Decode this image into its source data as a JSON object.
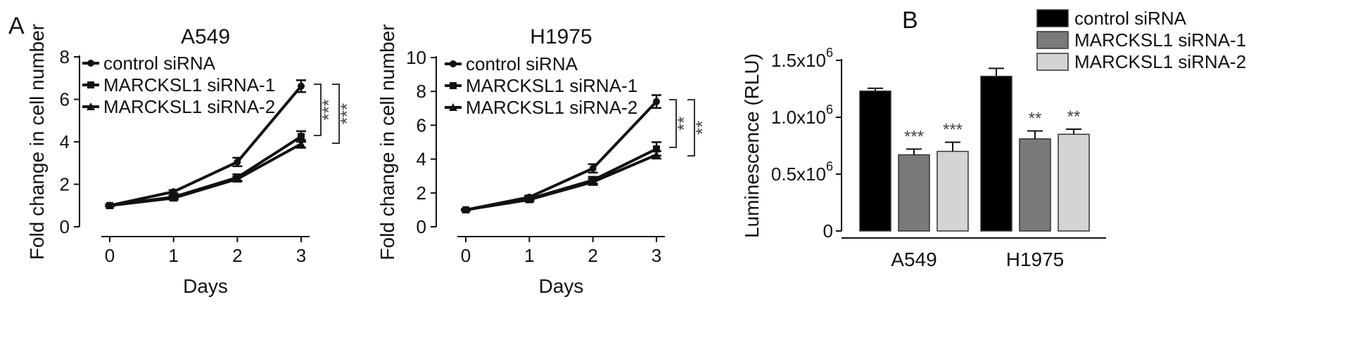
{
  "panel_labels": {
    "a": "A",
    "b": "B"
  },
  "chart_data": [
    {
      "type": "line",
      "title": "A549",
      "xlabel": "Days",
      "ylabel": "Fold change in cell number",
      "x": [
        0,
        1,
        2,
        3
      ],
      "xlim": [
        0,
        3
      ],
      "ylim": [
        0,
        8
      ],
      "yticks": [
        0,
        2,
        4,
        6,
        8
      ],
      "grid": false,
      "legend_position": "top-left",
      "series": [
        {
          "name": "control siRNA",
          "marker": "circle",
          "values": [
            1.0,
            1.65,
            3.05,
            6.62
          ],
          "errors": [
            0.05,
            0.08,
            0.2,
            0.28
          ]
        },
        {
          "name": "MARCKSL1 siRNA-1",
          "marker": "square",
          "values": [
            1.0,
            1.4,
            2.32,
            4.25
          ],
          "errors": [
            0.05,
            0.08,
            0.15,
            0.25
          ]
        },
        {
          "name": "MARCKSL1 siRNA-2",
          "marker": "triangle",
          "values": [
            1.0,
            1.35,
            2.25,
            3.9
          ],
          "errors": [
            0.05,
            0.08,
            0.12,
            0.18
          ]
        }
      ],
      "significance": [
        "***",
        "***"
      ]
    },
    {
      "type": "line",
      "title": "H1975",
      "xlabel": "Days",
      "ylabel": "Fold change in cell number",
      "x": [
        0,
        1,
        2,
        3
      ],
      "xlim": [
        0,
        3
      ],
      "ylim": [
        0,
        10
      ],
      "yticks": [
        0,
        2,
        4,
        6,
        8,
        10
      ],
      "grid": false,
      "legend_position": "top-left",
      "series": [
        {
          "name": "control siRNA",
          "marker": "circle",
          "values": [
            1.0,
            1.75,
            3.45,
            7.4
          ],
          "errors": [
            0.05,
            0.1,
            0.25,
            0.38
          ]
        },
        {
          "name": "MARCKSL1 siRNA-1",
          "marker": "square",
          "values": [
            1.0,
            1.65,
            2.75,
            4.6
          ],
          "errors": [
            0.05,
            0.1,
            0.2,
            0.4
          ]
        },
        {
          "name": "MARCKSL1 siRNA-2",
          "marker": "triangle",
          "values": [
            1.0,
            1.6,
            2.65,
            4.25
          ],
          "errors": [
            0.05,
            0.1,
            0.18,
            0.22
          ]
        }
      ],
      "significance": [
        "**",
        "**"
      ]
    },
    {
      "type": "bar",
      "categories": [
        "A549",
        "H1975"
      ],
      "ylabel": "Luminescence (RLU)",
      "ylim": [
        0,
        1500000
      ],
      "yticks": [
        0,
        500000,
        1000000,
        1500000
      ],
      "ytick_labels": [
        {
          "base": "0",
          "exp": ""
        },
        {
          "base": "0.5x10",
          "exp": "6"
        },
        {
          "base": "1.0x10",
          "exp": "6"
        },
        {
          "base": "1.5x10",
          "exp": "6"
        }
      ],
      "grid": false,
      "legend_position": "top-left",
      "series": [
        {
          "name": "control siRNA",
          "color": "#000000",
          "values": [
            1230000,
            1360000
          ],
          "errors": [
            25000,
            70000
          ],
          "stars": [
            "",
            ""
          ]
        },
        {
          "name": "MARCKSL1 siRNA-1",
          "color": "#7a7a7a",
          "values": [
            670000,
            810000
          ],
          "errors": [
            50000,
            70000
          ],
          "stars": [
            "***",
            "**"
          ]
        },
        {
          "name": "MARCKSL1 siRNA-2",
          "color": "#d4d4d4",
          "values": [
            700000,
            850000
          ],
          "errors": [
            80000,
            45000
          ],
          "stars": [
            "***",
            "**"
          ]
        }
      ]
    }
  ]
}
